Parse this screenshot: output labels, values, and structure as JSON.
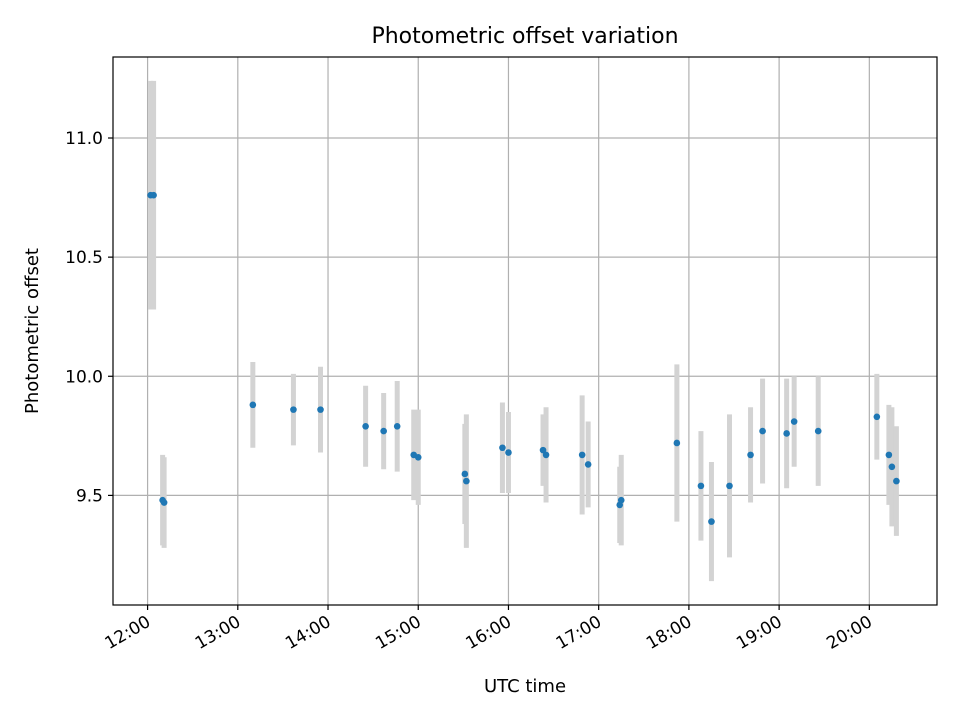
{
  "chart_data": {
    "type": "scatter",
    "title": "Photometric offset variation",
    "xlabel": "UTC time",
    "ylabel": "Photometric offset",
    "x_axis_kind": "time",
    "xlim": [
      "11:37",
      "20:45"
    ],
    "ylim": [
      9.04,
      11.34
    ],
    "x_ticks": [
      "12:00",
      "13:00",
      "14:00",
      "15:00",
      "16:00",
      "17:00",
      "18:00",
      "19:00",
      "20:00"
    ],
    "y_ticks": [
      9.5,
      10.0,
      10.5,
      11.0
    ],
    "y_tick_labels": [
      "9.5",
      "10.0",
      "10.5",
      "11.0"
    ],
    "grid": true,
    "legend": "none",
    "colors": {
      "marker": "#1f77b4",
      "errorbar": "#d3d3d3",
      "grid": "#b0b0b0"
    },
    "series": [
      {
        "points": [
          {
            "x": "12:02",
            "y": 10.76,
            "err": 0.48
          },
          {
            "x": "12:04",
            "y": 10.76,
            "err": 0.48
          },
          {
            "x": "12:10",
            "y": 9.48,
            "err": 0.19
          },
          {
            "x": "12:11",
            "y": 9.47,
            "err": 0.19
          },
          {
            "x": "13:10",
            "y": 9.88,
            "err": 0.18
          },
          {
            "x": "13:37",
            "y": 9.86,
            "err": 0.15
          },
          {
            "x": "13:55",
            "y": 9.86,
            "err": 0.18
          },
          {
            "x": "14:25",
            "y": 9.79,
            "err": 0.17
          },
          {
            "x": "14:37",
            "y": 9.77,
            "err": 0.16
          },
          {
            "x": "14:46",
            "y": 9.79,
            "err": 0.19
          },
          {
            "x": "14:57",
            "y": 9.67,
            "err": 0.19
          },
          {
            "x": "15:00",
            "y": 9.66,
            "err": 0.2
          },
          {
            "x": "15:31",
            "y": 9.59,
            "err": 0.21
          },
          {
            "x": "15:32",
            "y": 9.56,
            "err": 0.28
          },
          {
            "x": "15:56",
            "y": 9.7,
            "err": 0.19
          },
          {
            "x": "16:00",
            "y": 9.68,
            "err": 0.17
          },
          {
            "x": "16:23",
            "y": 9.69,
            "err": 0.15
          },
          {
            "x": "16:25",
            "y": 9.67,
            "err": 0.2
          },
          {
            "x": "16:49",
            "y": 9.67,
            "err": 0.25
          },
          {
            "x": "16:53",
            "y": 9.63,
            "err": 0.18
          },
          {
            "x": "17:14",
            "y": 9.46,
            "err": 0.16
          },
          {
            "x": "17:15",
            "y": 9.48,
            "err": 0.19
          },
          {
            "x": "17:52",
            "y": 9.72,
            "err": 0.33
          },
          {
            "x": "18:08",
            "y": 9.54,
            "err": 0.23
          },
          {
            "x": "18:15",
            "y": 9.39,
            "err": 0.25
          },
          {
            "x": "18:27",
            "y": 9.54,
            "err": 0.3
          },
          {
            "x": "18:41",
            "y": 9.67,
            "err": 0.2
          },
          {
            "x": "18:49",
            "y": 9.77,
            "err": 0.22
          },
          {
            "x": "19:05",
            "y": 9.76,
            "err": 0.23
          },
          {
            "x": "19:10",
            "y": 9.81,
            "err": 0.19
          },
          {
            "x": "19:26",
            "y": 9.77,
            "err": 0.23
          },
          {
            "x": "20:05",
            "y": 9.83,
            "err": 0.18
          },
          {
            "x": "20:13",
            "y": 9.67,
            "err": 0.21
          },
          {
            "x": "20:15",
            "y": 9.62,
            "err": 0.25
          },
          {
            "x": "20:18",
            "y": 9.56,
            "err": 0.23
          }
        ]
      }
    ]
  }
}
